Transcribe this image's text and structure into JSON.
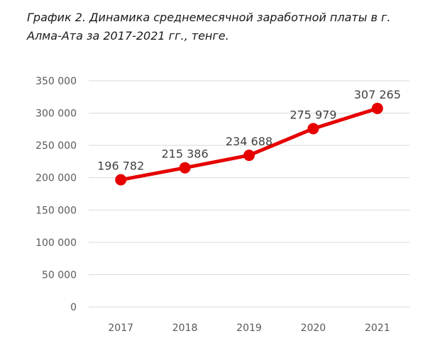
{
  "chart_data": {
    "type": "line",
    "title": "График 2. Динамика среднемесячной заработной платы в г. Алма-Ата за 2017-2021 гг., тенге.",
    "xlabel": "",
    "ylabel": "",
    "categories": [
      "2017",
      "2018",
      "2019",
      "2020",
      "2021"
    ],
    "series": [
      {
        "values": [
          196782,
          215386,
          234688,
          275979,
          307265
        ],
        "labels": [
          "196 782",
          "215 386",
          "234 688",
          "275 979",
          "307 265"
        ],
        "color": "#e60000"
      }
    ],
    "ylim": [
      0,
      350000
    ],
    "yticks": [
      0,
      50000,
      100000,
      150000,
      200000,
      250000,
      300000,
      350000
    ],
    "ytick_labels": [
      "0",
      "50 000",
      "100 000",
      "150 000",
      "200 000",
      "250 000",
      "300 000",
      "350 000"
    ],
    "grid": "horizontal",
    "legend": "none"
  }
}
